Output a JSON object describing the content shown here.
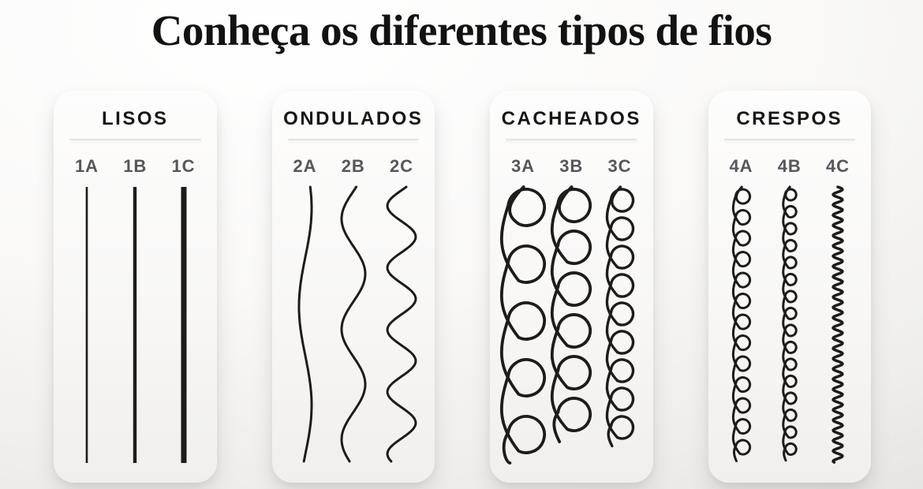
{
  "title": "Conheça os diferentes tipos de fios",
  "colors": {
    "strand": "#1d1c1a",
    "title_text": "#121212",
    "heading_text": "#161616",
    "label_text": "#56575b",
    "card_background_top": "#fdfdfc",
    "card_background_bottom": "#f0efed",
    "page_background_top": "#ffffff",
    "page_background_bottom": "#dcdbd9",
    "divider": "#e5e3e1"
  },
  "cards": [
    {
      "id": "lisos",
      "heading": "LISOS",
      "strands": [
        {
          "label": "1A",
          "type": "straight",
          "stroke": 2.6
        },
        {
          "label": "1B",
          "type": "straight",
          "stroke": 4.4
        },
        {
          "label": "1C",
          "type": "straight",
          "stroke": 7
        }
      ]
    },
    {
      "id": "ondulados",
      "heading": "ONDULADOS",
      "strands": [
        {
          "label": "2A",
          "type": "wave",
          "amplitude": 8,
          "cycles": 1.4,
          "phase": 0.9,
          "stroke": 3
        },
        {
          "label": "2B",
          "type": "wave",
          "amplitude": 15,
          "cycles": 2.5,
          "phase": 2.9,
          "stroke": 3
        },
        {
          "label": "2C",
          "type": "wave",
          "amplitude": 18,
          "cycles": 4.45,
          "phase": 2.8,
          "stroke": 3
        }
      ]
    },
    {
      "id": "cacheados",
      "heading": "CACHEADOS",
      "strands": [
        {
          "label": "3A",
          "type": "loop",
          "radius": 23,
          "advance": 72,
          "stroke": 3.8
        },
        {
          "label": "3B",
          "type": "loop",
          "radius": 20.5,
          "advance": 53,
          "stroke": 3.8
        },
        {
          "label": "3C",
          "type": "loop",
          "radius": 14,
          "advance": 36,
          "stroke": 3.4
        }
      ]
    },
    {
      "id": "crespos",
      "heading": "CRESPOS",
      "strands": [
        {
          "label": "4A",
          "type": "loop",
          "radius": 9,
          "advance": 26.5,
          "stroke": 3
        },
        {
          "label": "4B",
          "type": "loop",
          "radius": 7,
          "advance": 21.5,
          "stroke": 3
        },
        {
          "label": "4C",
          "type": "zigzag",
          "amplitude": 6,
          "period": 13,
          "stroke": 3.5
        }
      ]
    }
  ]
}
